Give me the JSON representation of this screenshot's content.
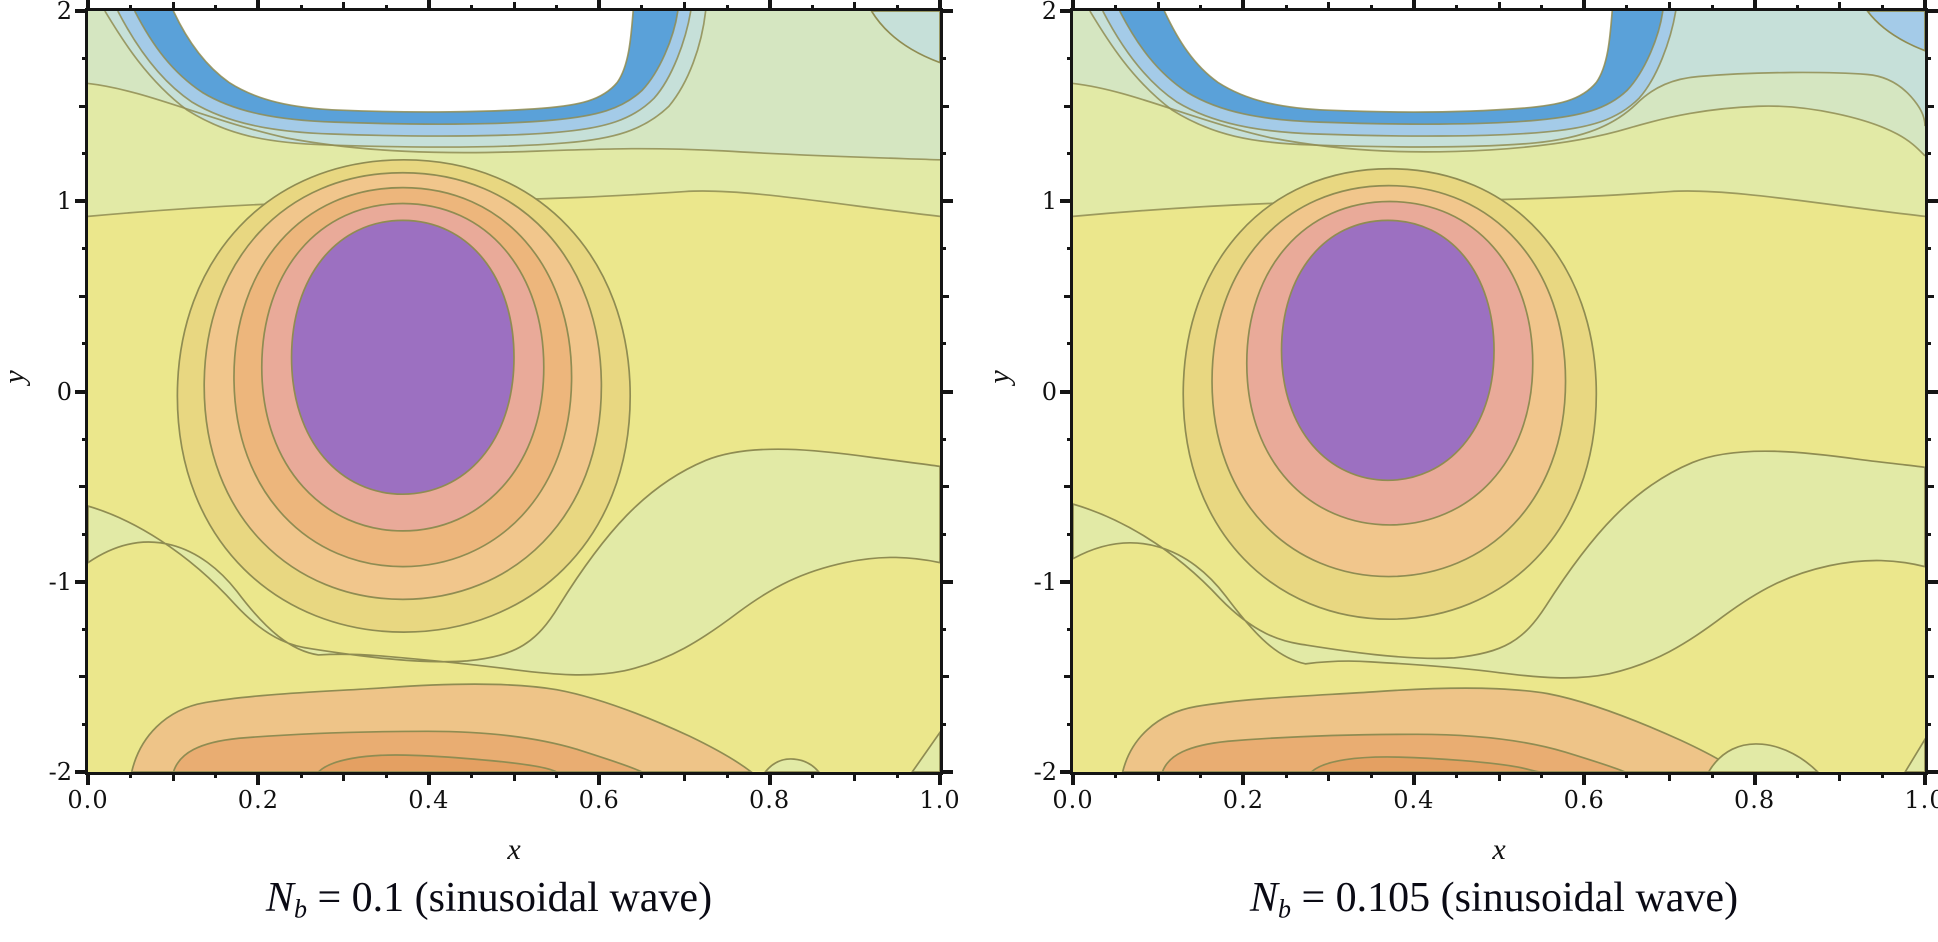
{
  "figure": {
    "background": "#ffffff",
    "frame_color": "#151515"
  },
  "palette": {
    "bg": "#ffffff",
    "line": "#8f8c52",
    "yellow": "#ebe78c",
    "yellowGreen": "#e2eaa6",
    "paleGreen": "#d5e6c1",
    "teal": "#c6e0d9",
    "lightBlue": "#a4cbe8",
    "blue": "#5aa1d9",
    "white": "#ffffff",
    "khaki": "#e8d781",
    "peach": "#f1c68c",
    "orange": "#edb67c",
    "salmon": "#e9aa99",
    "purple": "#9c70c1",
    "bottomPeach": "#eec488",
    "bottomOrange": "#e9ad72",
    "bottomDark": "#e4a062"
  },
  "plots": [
    {
      "id": "left",
      "caption": {
        "var": "N",
        "sub": "b",
        "rest": " = 0.1 (sinusoidal wave)",
        "full_text": "N_b = 0.1 (sinusoidal wave)"
      },
      "x_axis": {
        "label": "x",
        "range": [
          0,
          1
        ],
        "major_ticks": [
          0,
          0.2,
          0.4,
          0.6,
          0.8,
          1.0
        ],
        "minor_step": 0.05,
        "tick_labels": [
          "0.0",
          "0.2",
          "0.4",
          "0.6",
          "0.8",
          "1.0"
        ]
      },
      "y_axis": {
        "label": "y",
        "range": [
          -2,
          2
        ],
        "major_ticks": [
          2,
          1,
          0,
          -1,
          -2
        ],
        "minor_step": 0.25,
        "tick_labels": [
          "2",
          "1",
          "0",
          "-1",
          "-2"
        ]
      }
    },
    {
      "id": "right",
      "caption": {
        "var": "N",
        "sub": "b",
        "rest": " = 0.105 (sinusoidal wave)",
        "full_text": "N_b = 0.105 (sinusoidal wave)"
      },
      "x_axis": {
        "label": "x",
        "range": [
          0,
          1
        ],
        "major_ticks": [
          0,
          0.2,
          0.4,
          0.6,
          0.8,
          1.0
        ],
        "minor_step": 0.05,
        "tick_labels": [
          "0.0",
          "0.2",
          "0.4",
          "0.6",
          "0.8",
          "1.0"
        ]
      },
      "y_axis": {
        "label": "y",
        "range": [
          -2,
          2
        ],
        "major_ticks": [
          2,
          1,
          0,
          -1,
          -2
        ],
        "minor_step": 0.25,
        "tick_labels": [
          "2",
          "1",
          "0",
          "-1",
          "-2"
        ]
      }
    }
  ],
  "chart_data": [
    {
      "type": "contour",
      "title": "N_b = 0.1 (sinusoidal wave)",
      "xlabel": "x",
      "ylabel": "y",
      "xlim": [
        0.0,
        1.0
      ],
      "ylim": [
        -2,
        2
      ],
      "x_ticks": [
        0.0,
        0.2,
        0.4,
        0.6,
        0.8,
        1.0
      ],
      "y_ticks": [
        -2,
        -1,
        0,
        1,
        2
      ],
      "grid": false,
      "legend": "none",
      "fill_levels_low_to_high": [
        "#ffffff",
        "#5aa1d9",
        "#a4cbe8",
        "#c6e0d9",
        "#d5e6c1",
        "#e2eaa6",
        "#ebe78c",
        "#e8d781",
        "#f1c68c",
        "#edb67c",
        "#e9aa99",
        "#9c70c1"
      ],
      "features": [
        {
          "name": "minimum_trough",
          "shape": "white basin touching top edge",
          "x_extent": [
            0.1,
            0.64
          ],
          "y_extent": [
            1.45,
            2.0
          ],
          "surrounded_by": "thick blue band then light-blue, teal and pale-green bands"
        },
        {
          "name": "maximum_peak",
          "shape": "purple egg-shaped core",
          "center": [
            0.37,
            0.2
          ],
          "x_extent": [
            0.24,
            0.5
          ],
          "y_extent": [
            -0.54,
            0.9
          ],
          "rings_out_to_in": [
            "khaki",
            "peach",
            "orange",
            "salmon",
            "purple"
          ],
          "ring_count": 4
        },
        {
          "name": "green_dip_strip",
          "shape": "pale-green diagonal strip from left edge pinching near (0.27,-1.38) then widening into hump reaching right edge",
          "left_edge_y": [
            -0.9,
            -0.6
          ],
          "hump_center": [
            0.78,
            -0.55
          ]
        },
        {
          "name": "bottom_crest",
          "shape": "orange bands along bottom edge",
          "y_below": -1.6,
          "levels": [
            "peach",
            "orange",
            "dark-orange"
          ],
          "x_extent": [
            0.05,
            0.78
          ]
        },
        {
          "name": "bottom_right_green_bump",
          "x_extent": [
            0.79,
            0.86
          ],
          "y_at": -2.0
        },
        {
          "name": "top_right_region",
          "fill": "pale-green",
          "with_teal_corner_wedge": true
        }
      ]
    },
    {
      "type": "contour",
      "title": "N_b = 0.105 (sinusoidal wave)",
      "xlabel": "x",
      "ylabel": "y",
      "xlim": [
        0.0,
        1.0
      ],
      "ylim": [
        -2,
        2
      ],
      "x_ticks": [
        0.0,
        0.2,
        0.4,
        0.6,
        0.8,
        1.0
      ],
      "y_ticks": [
        -2,
        -1,
        0,
        1,
        2
      ],
      "grid": false,
      "legend": "none",
      "fill_levels_low_to_high": [
        "#ffffff",
        "#5aa1d9",
        "#a4cbe8",
        "#c6e0d9",
        "#d5e6c1",
        "#e2eaa6",
        "#ebe78c",
        "#e8d781",
        "#f1c68c",
        "#e9aa99",
        "#9c70c1"
      ],
      "features": [
        {
          "name": "minimum_trough",
          "shape": "white basin touching top edge",
          "x_extent": [
            0.13,
            0.62
          ],
          "y_extent": [
            1.45,
            2.0
          ],
          "surrounded_by": "thick blue band then light-blue and teal bands"
        },
        {
          "name": "maximum_peak",
          "shape": "purple egg-shaped core",
          "center": [
            0.37,
            0.2
          ],
          "x_extent": [
            0.245,
            0.495
          ],
          "y_extent": [
            -0.47,
            0.9
          ],
          "rings_out_to_in": [
            "khaki",
            "peach",
            "salmon",
            "purple"
          ],
          "ring_count": 3
        },
        {
          "name": "green_dip_strip",
          "shape": "pale-green diagonal strip from left edge, staying open (no pinch) near (0.28,-1.35), widening into hump reaching right edge",
          "left_edge_y": [
            -0.88,
            -0.59
          ],
          "hump_center": [
            0.78,
            -0.55
          ]
        },
        {
          "name": "bottom_crest",
          "shape": "orange bands along bottom edge",
          "y_below": -1.6,
          "levels": [
            "peach",
            "orange",
            "dark-orange"
          ],
          "x_extent": [
            0.06,
            0.78
          ]
        },
        {
          "name": "bottom_right_green_bump",
          "x_extent": [
            0.72,
            0.88
          ],
          "y_at": -2.0
        },
        {
          "name": "top_right_region",
          "fill": "teal (bluer than left panel)",
          "with_light_blue_corner_wedge": true
        }
      ]
    }
  ]
}
